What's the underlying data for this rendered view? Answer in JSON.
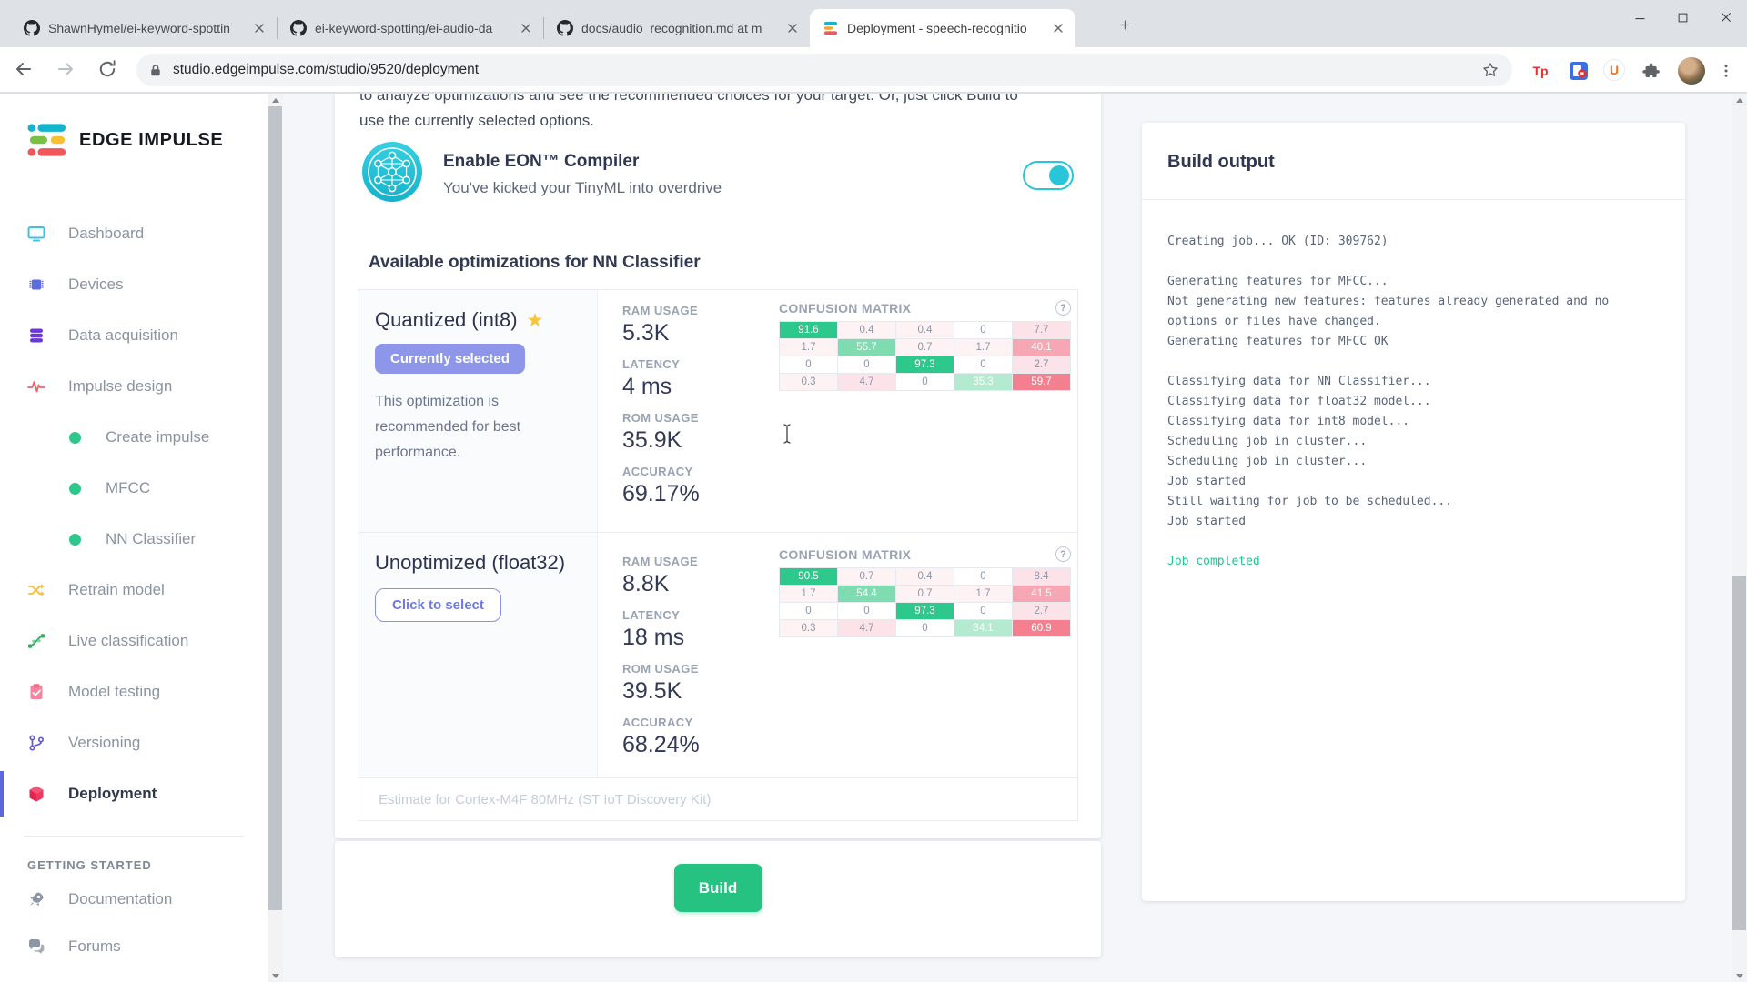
{
  "browser": {
    "tabs": [
      {
        "title": "ShawnHymel/ei-keyword-spottin",
        "favicon": "github",
        "active": false
      },
      {
        "title": "ei-keyword-spotting/ei-audio-da",
        "favicon": "github",
        "active": false
      },
      {
        "title": "docs/audio_recognition.md at m",
        "favicon": "github",
        "active": false
      },
      {
        "title": "Deployment - speech-recognitio",
        "favicon": "edge-impulse",
        "active": true
      }
    ],
    "url": "studio.edgeimpulse.com/studio/9520/deployment",
    "extensions": {
      "tp_label": "Tp",
      "u_label": "U"
    },
    "window_controls": [
      "minimize",
      "maximize",
      "close"
    ]
  },
  "sidebar": {
    "logo_text": "EDGE IMPULSE",
    "items": [
      {
        "label": "Dashboard",
        "icon": "dashboard",
        "type": "item"
      },
      {
        "label": "Devices",
        "icon": "devices",
        "type": "item"
      },
      {
        "label": "Data acquisition",
        "icon": "data-acquisition",
        "type": "item"
      },
      {
        "label": "Impulse design",
        "icon": "impulse-design",
        "type": "item"
      },
      {
        "label": "Create impulse",
        "type": "sub"
      },
      {
        "label": "MFCC",
        "type": "sub"
      },
      {
        "label": "NN Classifier",
        "type": "sub"
      },
      {
        "label": "Retrain model",
        "icon": "retrain",
        "type": "item"
      },
      {
        "label": "Live classification",
        "icon": "live-classification",
        "type": "item"
      },
      {
        "label": "Model testing",
        "icon": "model-testing",
        "type": "item"
      },
      {
        "label": "Versioning",
        "icon": "versioning",
        "type": "item"
      },
      {
        "label": "Deployment",
        "icon": "deployment",
        "type": "item",
        "active": true
      },
      {
        "type": "divider"
      },
      {
        "label": "GETTING STARTED",
        "type": "section"
      },
      {
        "label": "Documentation",
        "icon": "documentation",
        "type": "item",
        "small": true
      },
      {
        "label": "Forums",
        "icon": "forums",
        "type": "item",
        "small": true
      }
    ]
  },
  "main": {
    "intro_line1": "to analyze optimizations and see the recommended choices for your target. Or, just click Build to",
    "intro_line2": "use the currently selected options.",
    "eon": {
      "title": "Enable EON™ Compiler",
      "subtitle": "You've kicked your TinyML into overdrive",
      "enabled": true
    },
    "section_title": "Available optimizations for NN Classifier",
    "confusion_matrix_label": "CONFUSION MATRIX",
    "help_glyph": "?",
    "optimizations": [
      {
        "name": "Quantized (int8)",
        "starred": true,
        "badge": "Currently selected",
        "description": "This optimization is recommended for best performance.",
        "stats": [
          {
            "label": "RAM USAGE",
            "value": "5.3K"
          },
          {
            "label": "LATENCY",
            "value": "4 ms"
          },
          {
            "label": "ROM USAGE",
            "value": "35.9K"
          },
          {
            "label": "ACCURACY",
            "value": "69.17%"
          }
        ],
        "confusion_matrix": [
          [
            {
              "v": "91.6",
              "c": "g3"
            },
            {
              "v": "0.4",
              "c": "p0"
            },
            {
              "v": "0.4",
              "c": "p0"
            },
            {
              "v": "0",
              "c": "w"
            },
            {
              "v": "7.7",
              "c": "p1"
            }
          ],
          [
            {
              "v": "1.7",
              "c": "p0"
            },
            {
              "v": "55.7",
              "c": "g2"
            },
            {
              "v": "0.7",
              "c": "p0"
            },
            {
              "v": "1.7",
              "c": "p0"
            },
            {
              "v": "40.1",
              "c": "p2"
            }
          ],
          [
            {
              "v": "0",
              "c": "w"
            },
            {
              "v": "0",
              "c": "w"
            },
            {
              "v": "97.3",
              "c": "g3"
            },
            {
              "v": "0",
              "c": "w"
            },
            {
              "v": "2.7",
              "c": "p1"
            }
          ],
          [
            {
              "v": "0.3",
              "c": "p0"
            },
            {
              "v": "4.7",
              "c": "p1"
            },
            {
              "v": "0",
              "c": "w"
            },
            {
              "v": "35.3",
              "c": "g1"
            },
            {
              "v": "59.7",
              "c": "p3"
            }
          ]
        ]
      },
      {
        "name": "Unoptimized (float32)",
        "button_label": "Click to select",
        "stats": [
          {
            "label": "RAM USAGE",
            "value": "8.8K"
          },
          {
            "label": "LATENCY",
            "value": "18 ms"
          },
          {
            "label": "ROM USAGE",
            "value": "39.5K"
          },
          {
            "label": "ACCURACY",
            "value": "68.24%"
          }
        ],
        "confusion_matrix": [
          [
            {
              "v": "90.5",
              "c": "g3"
            },
            {
              "v": "0.7",
              "c": "p0"
            },
            {
              "v": "0.4",
              "c": "p0"
            },
            {
              "v": "0",
              "c": "w"
            },
            {
              "v": "8.4",
              "c": "p1"
            }
          ],
          [
            {
              "v": "1.7",
              "c": "p0"
            },
            {
              "v": "54.4",
              "c": "g2"
            },
            {
              "v": "0.7",
              "c": "p0"
            },
            {
              "v": "1.7",
              "c": "p0"
            },
            {
              "v": "41.5",
              "c": "p2"
            }
          ],
          [
            {
              "v": "0",
              "c": "w"
            },
            {
              "v": "0",
              "c": "w"
            },
            {
              "v": "97.3",
              "c": "g3"
            },
            {
              "v": "0",
              "c": "w"
            },
            {
              "v": "2.7",
              "c": "p1"
            }
          ],
          [
            {
              "v": "0.3",
              "c": "p0"
            },
            {
              "v": "4.7",
              "c": "p1"
            },
            {
              "v": "0",
              "c": "w"
            },
            {
              "v": "34.1",
              "c": "g1"
            },
            {
              "v": "60.9",
              "c": "p3"
            }
          ]
        ]
      }
    ],
    "estimate_note": "Estimate for Cortex-M4F 80MHz (ST IoT Discovery Kit)",
    "build_button_label": "Build"
  },
  "build_output": {
    "title": "Build output",
    "log": [
      {
        "text": "Creating job... OK (ID: 309762)",
        "status": "normal"
      },
      {
        "text": "",
        "status": "normal"
      },
      {
        "text": "Generating features for MFCC...",
        "status": "normal"
      },
      {
        "text": "Not generating new features: features already generated and no options or files have changed.",
        "status": "normal"
      },
      {
        "text": "Generating features for MFCC OK",
        "status": "normal"
      },
      {
        "text": "",
        "status": "normal"
      },
      {
        "text": "Classifying data for NN Classifier...",
        "status": "normal"
      },
      {
        "text": "Classifying data for float32 model...",
        "status": "normal"
      },
      {
        "text": "Classifying data for int8 model...",
        "status": "normal"
      },
      {
        "text": "Scheduling job in cluster...",
        "status": "normal"
      },
      {
        "text": "Scheduling job in cluster...",
        "status": "normal"
      },
      {
        "text": "Job started",
        "status": "normal"
      },
      {
        "text": "Still waiting for job to be scheduled...",
        "status": "normal"
      },
      {
        "text": "Job started",
        "status": "normal"
      },
      {
        "text": "",
        "status": "normal"
      },
      {
        "text": "Job completed",
        "status": "success"
      }
    ]
  },
  "colors": {
    "accent_teal": "#29c5d9",
    "build_green": "#26c281",
    "selected_badge_indigo": "#8d96e8",
    "success_green": "#23c48e",
    "active_nav_indigo": "#5d66e0",
    "matrix_green_strong": "#2dc98c",
    "matrix_green_mid": "#7edcb0",
    "matrix_green_light": "#b4ebd0",
    "matrix_pink_strong": "#f4808f",
    "matrix_pink_mid": "#f7a6b4",
    "matrix_pink_light": "#fbe3e9"
  }
}
